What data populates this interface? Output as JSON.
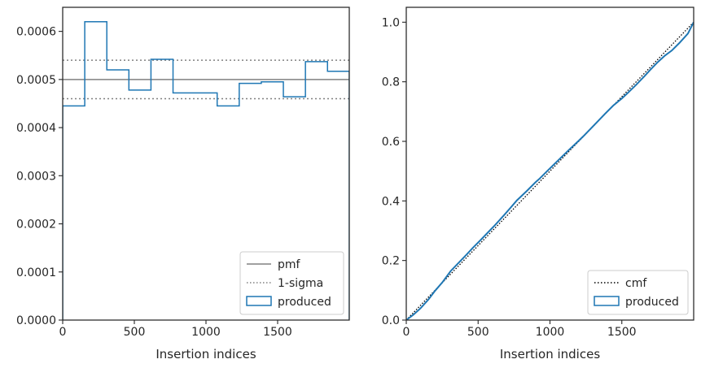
{
  "chart_data": [
    {
      "type": "histogram-step",
      "xlabel": "Insertion indices",
      "ylabel": "",
      "xlim": [
        0,
        2000
      ],
      "ylim": [
        0,
        0.00065
      ],
      "xticks": [
        0,
        500,
        1000,
        1500
      ],
      "xtick_labels": [
        "0",
        "500",
        "1000",
        "1500"
      ],
      "yticks": [
        0,
        0.0001,
        0.0002,
        0.0003,
        0.0004,
        0.0005,
        0.0006
      ],
      "ytick_labels": [
        "0.0000",
        "0.0001",
        "0.0002",
        "0.0003",
        "0.0004",
        "0.0005",
        "0.0006"
      ],
      "pmf": 0.0005,
      "sigma_low": 0.00046,
      "sigma_high": 0.00054,
      "bin_edges": [
        0,
        154,
        308,
        462,
        616,
        770,
        924,
        1078,
        1232,
        1386,
        1540,
        1694,
        1848,
        2000
      ],
      "values": [
        0.000445,
        0.00062,
        0.00052,
        0.000478,
        0.000542,
        0.000472,
        0.000472,
        0.000445,
        0.000492,
        0.000495,
        0.000464,
        0.000537,
        0.000517
      ],
      "legend": {
        "position": "lower right",
        "entries": [
          {
            "label": "pmf",
            "style": "solid",
            "color": "#808080"
          },
          {
            "label": "1-sigma",
            "style": "dotted",
            "color": "#808080"
          },
          {
            "label": "produced",
            "style": "patch",
            "color": "#1f77b4"
          }
        ]
      },
      "grid": false
    },
    {
      "type": "line-step",
      "xlabel": "Insertion indices",
      "ylabel": "",
      "xlim": [
        0,
        2000
      ],
      "ylim": [
        0,
        1.05
      ],
      "xticks": [
        0,
        500,
        1000,
        1500
      ],
      "xtick_labels": [
        "0",
        "500",
        "1000",
        "1500"
      ],
      "yticks": [
        0,
        0.2,
        0.4,
        0.6,
        0.8,
        1.0
      ],
      "ytick_labels": [
        "0.0",
        "0.2",
        "0.4",
        "0.6",
        "0.8",
        "1.0"
      ],
      "cmf": {
        "x": [
          0,
          2000
        ],
        "y": [
          0,
          1.0
        ]
      },
      "produced": {
        "x": [
          0,
          50,
          100,
          154,
          200,
          250,
          308,
          360,
          420,
          462,
          520,
          580,
          616,
          680,
          740,
          770,
          840,
          900,
          924,
          980,
          1040,
          1078,
          1140,
          1200,
          1232,
          1290,
          1350,
          1386,
          1440,
          1500,
          1540,
          1600,
          1660,
          1694,
          1750,
          1800,
          1848,
          1900,
          1960,
          2000
        ],
        "y": [
          0,
          0.018,
          0.04,
          0.069,
          0.098,
          0.126,
          0.164,
          0.19,
          0.22,
          0.242,
          0.27,
          0.3,
          0.318,
          0.352,
          0.385,
          0.402,
          0.434,
          0.463,
          0.473,
          0.5,
          0.528,
          0.546,
          0.575,
          0.602,
          0.617,
          0.646,
          0.676,
          0.694,
          0.72,
          0.744,
          0.762,
          0.79,
          0.82,
          0.838,
          0.866,
          0.888,
          0.905,
          0.93,
          0.962,
          1.0
        ]
      },
      "legend": {
        "position": "lower right",
        "entries": [
          {
            "label": "cmf",
            "style": "dotted",
            "color": "#000000"
          },
          {
            "label": "produced",
            "style": "patch",
            "color": "#1f77b4"
          }
        ]
      },
      "grid": false
    }
  ]
}
